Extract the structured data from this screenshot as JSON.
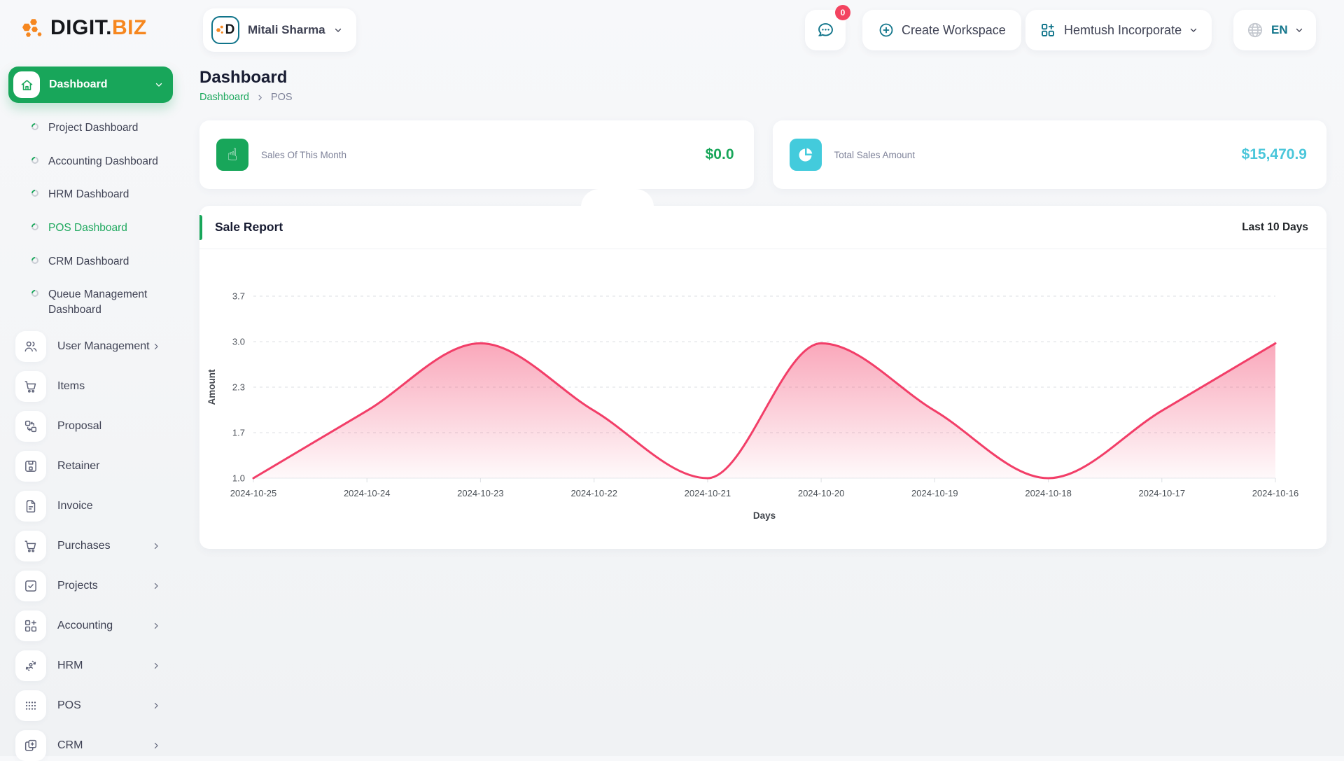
{
  "app": {
    "name_dark": "DIGIT.",
    "name_accent": "BIZ"
  },
  "colors": {
    "primary_green": "#18a65a",
    "teal": "#10748a",
    "cyan": "#45c8db",
    "pink": "#f23e68",
    "badge_red": "#f34460",
    "orange": "#f6871f"
  },
  "header": {
    "user": {
      "name": "Mitali Sharma",
      "avatar_letter": "D"
    },
    "chat": {
      "badge_count": "0"
    },
    "create_workspace_label": "Create Workspace",
    "workspace_name": "Hemtush Incorporate",
    "language": "EN"
  },
  "sidebar": {
    "main_item": {
      "label": "Dashboard"
    },
    "dashboards": [
      {
        "label": "Project Dashboard"
      },
      {
        "label": "Accounting Dashboard"
      },
      {
        "label": "HRM Dashboard"
      },
      {
        "label": "POS Dashboard"
      },
      {
        "label": "CRM Dashboard"
      },
      {
        "label": "Queue Management Dashboard"
      }
    ],
    "items": [
      {
        "label": "User Management",
        "icon": "users-icon",
        "expandable": true
      },
      {
        "label": "Items",
        "icon": "cart-icon",
        "expandable": false
      },
      {
        "label": "Proposal",
        "icon": "swap-squares-icon",
        "expandable": false
      },
      {
        "label": "Retainer",
        "icon": "save-icon",
        "expandable": false
      },
      {
        "label": "Invoice",
        "icon": "document-icon",
        "expandable": false
      },
      {
        "label": "Purchases",
        "icon": "cart-icon",
        "expandable": true
      },
      {
        "label": "Projects",
        "icon": "check-square-icon",
        "expandable": true
      },
      {
        "label": "Accounting",
        "icon": "grid-plus-icon",
        "expandable": true
      },
      {
        "label": "HRM",
        "icon": "person-sync-icon",
        "expandable": true
      },
      {
        "label": "POS",
        "icon": "dots-grid-icon",
        "expandable": true
      },
      {
        "label": "CRM",
        "icon": "copy-plus-icon",
        "expandable": true
      }
    ]
  },
  "page": {
    "title": "Dashboard",
    "breadcrumb": {
      "root": "Dashboard",
      "current": "POS"
    }
  },
  "stats": [
    {
      "label": "Sales Of This Month",
      "value": "$0.0",
      "icon": "hand-pointer-icon",
      "accent": "#18a65a"
    },
    {
      "label": "Total Sales Amount",
      "value": "$15,470.9",
      "icon": "pie-chart-icon",
      "accent": "#45c8db"
    }
  ],
  "report": {
    "title": "Sale Report",
    "range": "Last 10 Days"
  },
  "chart_data": {
    "type": "area",
    "title": "Sale Report",
    "x": [
      "2024-10-25",
      "2024-10-24",
      "2024-10-23",
      "2024-10-22",
      "2024-10-21",
      "2024-10-20",
      "2024-10-19",
      "2024-10-18",
      "2024-10-17",
      "2024-10-16"
    ],
    "series": [
      {
        "name": "Amount",
        "values": [
          1.0,
          2.0,
          3.0,
          2.0,
          1.0,
          3.0,
          2.0,
          1.0,
          2.0,
          3.0
        ]
      }
    ],
    "xlabel": "Days",
    "ylabel": "Amount",
    "ylim": [
      1.0,
      3.7
    ],
    "yticks": [
      {
        "v": 1.0,
        "label": "1.0"
      },
      {
        "v": 1.675,
        "label": "1.7"
      },
      {
        "v": 2.35,
        "label": "2.3"
      },
      {
        "v": 3.025,
        "label": "3.0"
      },
      {
        "v": 3.7,
        "label": "3.7"
      }
    ],
    "grid": "horizontal-dashed",
    "legend": "none",
    "smooth": true,
    "line_color": "#f23e68",
    "fill_color": "#f23e68"
  }
}
